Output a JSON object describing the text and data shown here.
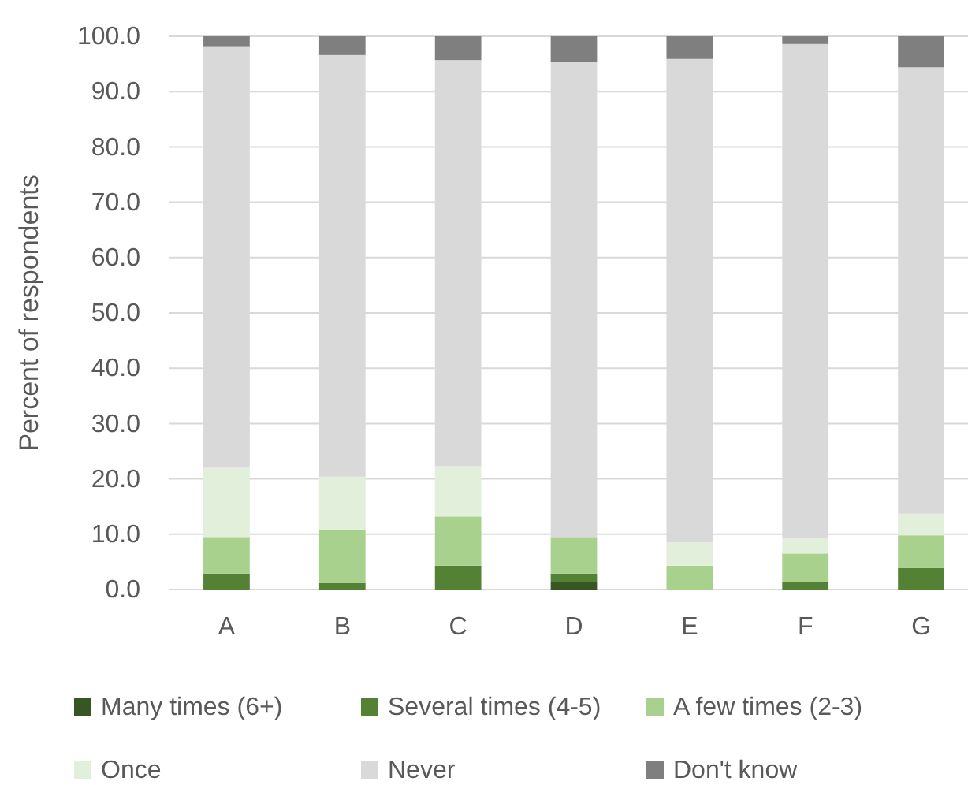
{
  "chart_data": {
    "type": "bar",
    "stacked": true,
    "ylabel": "Percent of respondents",
    "categories": [
      "A",
      "B",
      "C",
      "D",
      "E",
      "F",
      "G"
    ],
    "series": [
      {
        "name": "Many times (6+)",
        "color": "#375623",
        "values": [
          0,
          0,
          0,
          1.3,
          0,
          0,
          0
        ]
      },
      {
        "name": "Several times (4-5)",
        "color": "#548235",
        "values": [
          2.9,
          1.2,
          4.3,
          1.6,
          0,
          1.3,
          3.9
        ]
      },
      {
        "name": "A few times (2-3)",
        "color": "#a9d18e",
        "values": [
          6.6,
          9.6,
          8.9,
          6.6,
          4.3,
          5.2,
          5.9
        ]
      },
      {
        "name": "Once",
        "color": "#e2efda",
        "values": [
          12.5,
          9.6,
          9.1,
          0,
          4.2,
          2.7,
          3.9
        ]
      },
      {
        "name": "Never",
        "color": "#d9d9d9",
        "values": [
          76.2,
          76.2,
          73.4,
          85.8,
          87.4,
          89.4,
          80.7
        ]
      },
      {
        "name": "Don't know",
        "color": "#7f7f7f",
        "values": [
          1.8,
          3.4,
          4.3,
          4.7,
          4.1,
          1.4,
          5.6
        ]
      }
    ],
    "ylim": [
      0,
      100
    ],
    "yticks": [
      {
        "value": 0,
        "label": "0.0"
      },
      {
        "value": 10,
        "label": "10.0"
      },
      {
        "value": 20,
        "label": "20.0"
      },
      {
        "value": 30,
        "label": "30.0"
      },
      {
        "value": 40,
        "label": "40.0"
      },
      {
        "value": 50,
        "label": "50.0"
      },
      {
        "value": 60,
        "label": "60.0"
      },
      {
        "value": 70,
        "label": "70.0"
      },
      {
        "value": 80,
        "label": "80.0"
      },
      {
        "value": 90,
        "label": "90.0"
      },
      {
        "value": 100,
        "label": "100.0"
      }
    ],
    "grid": "y",
    "legend": "bottom"
  }
}
